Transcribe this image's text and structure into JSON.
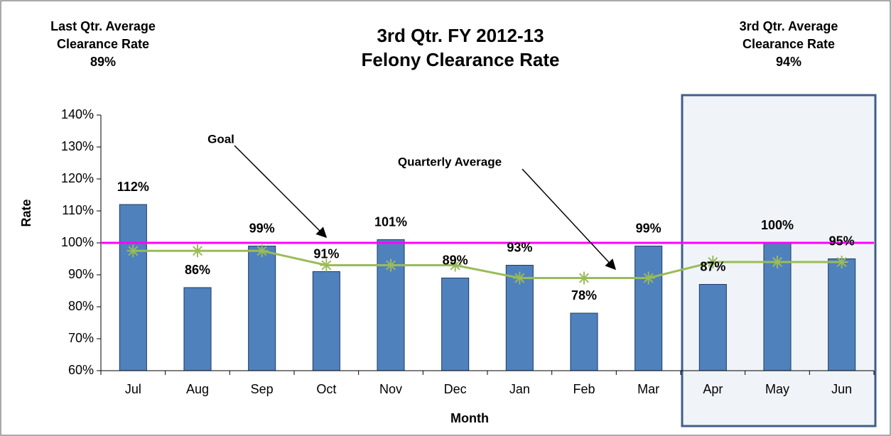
{
  "chart_data": {
    "type": "bar",
    "title": [
      "3rd Qtr. FY 2012-13",
      "Felony Clearance Rate"
    ],
    "left_note": [
      "Last Qtr. Average",
      "Clearance Rate",
      "89%"
    ],
    "right_note": [
      "3rd Qtr. Average",
      "Clearance Rate",
      "94%"
    ],
    "xlabel": "Month",
    "ylabel": "Rate",
    "categories": [
      "Jul",
      "Aug",
      "Sep",
      "Oct",
      "Nov",
      "Dec",
      "Jan",
      "Feb",
      "Mar",
      "Apr",
      "May",
      "Jun"
    ],
    "values": [
      112,
      86,
      99,
      91,
      101,
      89,
      93,
      78,
      99,
      87,
      100,
      95
    ],
    "value_labels": [
      "112%",
      "86%",
      "99%",
      "91%",
      "101%",
      "89%",
      "93%",
      "78%",
      "99%",
      "87%",
      "100%",
      "95%"
    ],
    "color": "#4f81bd",
    "goal": {
      "name": "Goal",
      "value": 100,
      "color": "#ff00ff"
    },
    "average": {
      "name": "Quarterly Average",
      "values": [
        97.5,
        97.5,
        97.5,
        93,
        93,
        93,
        89,
        89,
        89,
        94,
        94,
        94
      ],
      "color": "#9bbb59"
    },
    "ylim": [
      60,
      140
    ],
    "yticks": [
      {
        "value": 60,
        "label": "60%"
      },
      {
        "value": 70,
        "label": "70%"
      },
      {
        "value": 80,
        "label": "80%"
      },
      {
        "value": 90,
        "label": "90%"
      },
      {
        "value": 100,
        "label": "100%"
      },
      {
        "value": 110,
        "label": "110%"
      },
      {
        "value": 120,
        "label": "120%"
      },
      {
        "value": 130,
        "label": "130%"
      },
      {
        "value": 140,
        "label": "140%"
      }
    ]
  }
}
